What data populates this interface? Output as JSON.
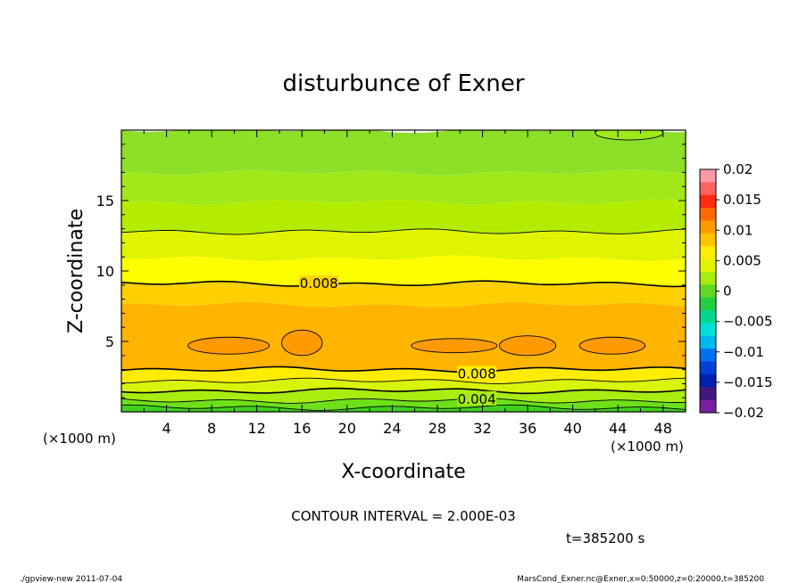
{
  "chart_data": {
    "type": "heatmap",
    "title": "disturbunce of Exner",
    "xlabel": "X-coordinate",
    "ylabel": "Z-coordinate",
    "x_unit_left": "(×1000 m)",
    "x_unit_right": "(×1000 m)",
    "xlim": [
      0,
      50
    ],
    "ylim": [
      0,
      20
    ],
    "x_ticks": [
      4,
      8,
      12,
      16,
      20,
      24,
      28,
      32,
      36,
      40,
      44,
      48
    ],
    "y_ticks": [
      5,
      10,
      15
    ],
    "contour_interval_text": "CONTOUR INTERVAL = 2.000E-03",
    "time_text": "t=385200 s",
    "footer_left": "./gpview-new   2011-07-04",
    "footer_right": "MarsCond_Exner.nc@Exner,x=0:50000,z=0:20000,t=385200",
    "contour_labels": [
      {
        "text": "0.008",
        "x": 17.5,
        "z": 9.1
      },
      {
        "text": "0.008",
        "x": 31.5,
        "z": 2.7
      },
      {
        "text": "0.004",
        "x": 31.5,
        "z": 0.9
      }
    ],
    "bands": [
      {
        "z0": 0.0,
        "z1": 0.3,
        "color": "#40d020"
      },
      {
        "z0": 0.3,
        "z1": 0.8,
        "color": "#6ee01a"
      },
      {
        "z0": 0.8,
        "z1": 1.5,
        "color": "#a8ec10"
      },
      {
        "z0": 1.5,
        "z1": 2.2,
        "color": "#d8f408"
      },
      {
        "z0": 2.2,
        "z1": 3.0,
        "color": "#ffec00"
      },
      {
        "z0": 3.0,
        "z1": 7.6,
        "color": "#ffb400"
      },
      {
        "z0": 7.6,
        "z1": 9.1,
        "color": "#ffd000"
      },
      {
        "z0": 9.1,
        "z1": 10.9,
        "color": "#ffff00"
      },
      {
        "z0": 10.9,
        "z1": 12.8,
        "color": "#e0f400"
      },
      {
        "z0": 12.8,
        "z1": 14.9,
        "color": "#b4ec00"
      },
      {
        "z0": 14.9,
        "z1": 17.0,
        "color": "#a0e81a"
      },
      {
        "z0": 17.0,
        "z1": 20.0,
        "color": "#8ce028"
      }
    ],
    "contours_z": [
      0.3,
      0.8,
      1.5,
      2.2,
      3.0,
      9.1,
      12.8
    ],
    "blobs": [
      {
        "x": 9.5,
        "z": 4.7,
        "rx": 3.6,
        "rz": 0.6
      },
      {
        "x": 16.0,
        "z": 4.9,
        "rx": 1.8,
        "rz": 0.9
      },
      {
        "x": 29.5,
        "z": 4.7,
        "rx": 3.8,
        "rz": 0.5
      },
      {
        "x": 36.0,
        "z": 4.7,
        "rx": 2.5,
        "rz": 0.7
      },
      {
        "x": 43.5,
        "z": 4.7,
        "rx": 2.9,
        "rz": 0.6
      }
    ],
    "top_blob": {
      "x": 45.0,
      "z": 19.8,
      "rx": 3.0,
      "rz": 0.5
    },
    "colorbar": {
      "min": -0.02,
      "max": 0.02,
      "tick_labels": [
        "0.02",
        "0.015",
        "0.01",
        "0.005",
        "0",
        "−0.005",
        "−0.01",
        "−0.015",
        "−0.02"
      ],
      "tick_values": [
        0.02,
        0.015,
        0.01,
        0.005,
        0,
        -0.005,
        -0.01,
        -0.015,
        -0.02
      ],
      "colors": [
        "#ff9aa8",
        "#ff6060",
        "#ff2a10",
        "#ff6a00",
        "#ff9a00",
        "#ffc400",
        "#ffec00",
        "#e0f400",
        "#a8ec10",
        "#60d820",
        "#20d040",
        "#00d890",
        "#00e0d8",
        "#00b8f0",
        "#0070f0",
        "#0040d8",
        "#0020b0",
        "#401880",
        "#7820a0"
      ]
    }
  }
}
